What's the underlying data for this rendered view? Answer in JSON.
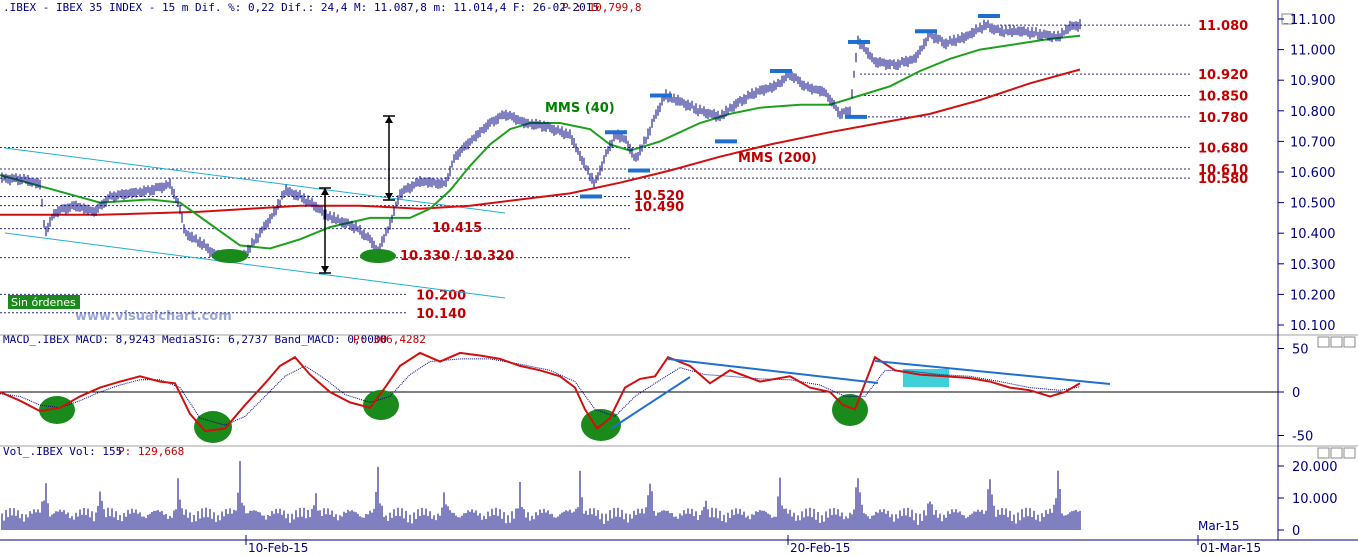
{
  "header": {
    "main_info": ".IBEX - IBEX 35 INDEX -  15 m Dif. %: 0,22 Dif.: 24,4 M: 11.087,8 m: 11.014,4 F: 26-02-2015",
    "main_last": "P : 10,799,8",
    "macd_info": "MACD_.IBEX MACD: 8,9243 MediaSIG: 6,2737 Band_MACD: 0,0000",
    "macd_last": "P: 306,4282",
    "vol_info": "Vol_.IBEX Vol: 155",
    "vol_last": "P: 129,668"
  },
  "watermark": "www.visualchart.com",
  "sin_ordenes": "Sin órdenes",
  "colors": {
    "price": "#000080",
    "mm40": "#1ea01e",
    "mm200": "#d01010",
    "macd": "#d01010",
    "signal": "#000080",
    "trend": "#1f6fd0",
    "level_text": "#c00000",
    "channel": "#20b0d0",
    "marker": "#1f6fd0",
    "ellipse": "#1a8a1a"
  },
  "annotations": {
    "mms40": "MMS (40)",
    "mms200": "MMS (200)",
    "lbl_10415": "10.415",
    "lbl_10330": "10.330 / 10.320",
    "lbl_10520": "10.520",
    "lbl_10490": "10.490"
  },
  "right_levels": [
    {
      "label": "11.080",
      "value": 11080
    },
    {
      "label": "10.920",
      "value": 10920
    },
    {
      "label": "10.850",
      "value": 10850
    },
    {
      "label": "10.780",
      "value": 10780
    },
    {
      "label": "10.680",
      "value": 10680
    },
    {
      "label": "10.610",
      "value": 10610
    },
    {
      "label": "10.580",
      "value": 10580
    }
  ],
  "left_levels": [
    {
      "label": "10.200",
      "value": 10200
    },
    {
      "label": "10.140",
      "value": 10140
    }
  ],
  "other_levels": [
    10520,
    10490,
    10415,
    10320
  ],
  "date_labels": [
    "10-Feb-15",
    "20-Feb-15",
    "01-Mar-15"
  ],
  "mar_label": "Mar-15",
  "chart_data": [
    {
      "type": "line",
      "title": ".IBEX - IBEX 35 INDEX - 15 m",
      "series_names": [
        "IBEX 35 (15 m bars)",
        "MMS (40)",
        "MMS (200)"
      ],
      "y_ticks": [
        "11.100",
        "11.000",
        "10.900",
        "10.800",
        "10.700",
        "10.600",
        "10.500",
        "10.400",
        "10.300",
        "10.200",
        "10.100"
      ],
      "ylim": [
        10085,
        11108
      ],
      "price_path": [
        [
          0,
          10580
        ],
        [
          25,
          10575
        ],
        [
          40,
          10560
        ],
        [
          45,
          10400
        ],
        [
          55,
          10470
        ],
        [
          75,
          10490
        ],
        [
          95,
          10470
        ],
        [
          110,
          10520
        ],
        [
          130,
          10530
        ],
        [
          150,
          10540
        ],
        [
          170,
          10560
        ],
        [
          180,
          10480
        ],
        [
          185,
          10400
        ],
        [
          200,
          10370
        ],
        [
          215,
          10330
        ],
        [
          225,
          10320
        ],
        [
          245,
          10330
        ],
        [
          260,
          10400
        ],
        [
          275,
          10470
        ],
        [
          285,
          10540
        ],
        [
          300,
          10520
        ],
        [
          315,
          10490
        ],
        [
          325,
          10460
        ],
        [
          340,
          10440
        ],
        [
          355,
          10420
        ],
        [
          370,
          10380
        ],
        [
          378,
          10340
        ],
        [
          390,
          10430
        ],
        [
          400,
          10530
        ],
        [
          420,
          10570
        ],
        [
          445,
          10560
        ],
        [
          455,
          10650
        ],
        [
          470,
          10700
        ],
        [
          490,
          10760
        ],
        [
          505,
          10790
        ],
        [
          525,
          10760
        ],
        [
          545,
          10750
        ],
        [
          570,
          10720
        ],
        [
          585,
          10620
        ],
        [
          595,
          10560
        ],
        [
          605,
          10650
        ],
        [
          615,
          10720
        ],
        [
          625,
          10710
        ],
        [
          635,
          10640
        ],
        [
          645,
          10700
        ],
        [
          655,
          10780
        ],
        [
          665,
          10850
        ],
        [
          680,
          10830
        ],
        [
          700,
          10800
        ],
        [
          720,
          10780
        ],
        [
          735,
          10820
        ],
        [
          755,
          10860
        ],
        [
          775,
          10880
        ],
        [
          790,
          10920
        ],
        [
          805,
          10880
        ],
        [
          825,
          10860
        ],
        [
          840,
          10790
        ],
        [
          850,
          10800
        ],
        [
          858,
          11030
        ],
        [
          875,
          10960
        ],
        [
          895,
          10950
        ],
        [
          915,
          10970
        ],
        [
          930,
          11050
        ],
        [
          945,
          11020
        ],
        [
          965,
          11040
        ],
        [
          985,
          11080
        ],
        [
          1000,
          11060
        ],
        [
          1020,
          11060
        ],
        [
          1040,
          11050
        ],
        [
          1058,
          11040
        ],
        [
          1070,
          11075
        ],
        [
          1080,
          11080
        ]
      ],
      "mm40": [
        [
          0,
          10590
        ],
        [
          50,
          10545
        ],
        [
          100,
          10500
        ],
        [
          150,
          10510
        ],
        [
          180,
          10500
        ],
        [
          210,
          10430
        ],
        [
          240,
          10360
        ],
        [
          270,
          10350
        ],
        [
          300,
          10380
        ],
        [
          330,
          10420
        ],
        [
          370,
          10450
        ],
        [
          410,
          10450
        ],
        [
          430,
          10480
        ],
        [
          450,
          10540
        ],
        [
          470,
          10620
        ],
        [
          490,
          10690
        ],
        [
          510,
          10740
        ],
        [
          530,
          10760
        ],
        [
          560,
          10760
        ],
        [
          590,
          10740
        ],
        [
          610,
          10690
        ],
        [
          630,
          10670
        ],
        [
          660,
          10700
        ],
        [
          700,
          10760
        ],
        [
          730,
          10790
        ],
        [
          760,
          10810
        ],
        [
          800,
          10820
        ],
        [
          830,
          10820
        ],
        [
          860,
          10850
        ],
        [
          890,
          10880
        ],
        [
          920,
          10930
        ],
        [
          950,
          10970
        ],
        [
          980,
          11000
        ],
        [
          1020,
          11020
        ],
        [
          1050,
          11035
        ],
        [
          1080,
          11045
        ]
      ],
      "mm200": [
        [
          0,
          10460
        ],
        [
          100,
          10460
        ],
        [
          200,
          10470
        ],
        [
          250,
          10480
        ],
        [
          300,
          10490
        ],
        [
          360,
          10490
        ],
        [
          420,
          10480
        ],
        [
          470,
          10490
        ],
        [
          520,
          10510
        ],
        [
          570,
          10530
        ],
        [
          620,
          10565
        ],
        [
          670,
          10605
        ],
        [
          720,
          10650
        ],
        [
          770,
          10690
        ],
        [
          830,
          10730
        ],
        [
          880,
          10760
        ],
        [
          930,
          10790
        ],
        [
          980,
          10835
        ],
        [
          1030,
          10890
        ],
        [
          1080,
          10935
        ]
      ]
    },
    {
      "type": "line",
      "title": "MACD_.IBEX",
      "series_names": [
        "MACD",
        "MediaSIG"
      ],
      "y_ticks": [
        "50",
        "0",
        "-50"
      ],
      "ylim": [
        -60,
        55
      ],
      "macd": [
        [
          0,
          0
        ],
        [
          20,
          -10
        ],
        [
          40,
          -22
        ],
        [
          60,
          -18
        ],
        [
          80,
          -5
        ],
        [
          100,
          5
        ],
        [
          120,
          12
        ],
        [
          140,
          18
        ],
        [
          160,
          12
        ],
        [
          175,
          10
        ],
        [
          190,
          -25
        ],
        [
          205,
          -45
        ],
        [
          225,
          -42
        ],
        [
          245,
          -15
        ],
        [
          265,
          10
        ],
        [
          280,
          30
        ],
        [
          295,
          40
        ],
        [
          310,
          20
        ],
        [
          330,
          0
        ],
        [
          350,
          -12
        ],
        [
          370,
          -18
        ],
        [
          385,
          5
        ],
        [
          400,
          30
        ],
        [
          420,
          45
        ],
        [
          440,
          35
        ],
        [
          460,
          45
        ],
        [
          480,
          42
        ],
        [
          500,
          38
        ],
        [
          520,
          30
        ],
        [
          540,
          25
        ],
        [
          560,
          18
        ],
        [
          575,
          5
        ],
        [
          585,
          -20
        ],
        [
          597,
          -42
        ],
        [
          610,
          -30
        ],
        [
          625,
          5
        ],
        [
          640,
          15
        ],
        [
          655,
          18
        ],
        [
          668,
          40
        ],
        [
          690,
          30
        ],
        [
          710,
          10
        ],
        [
          730,
          25
        ],
        [
          760,
          12
        ],
        [
          790,
          18
        ],
        [
          810,
          5
        ],
        [
          830,
          0
        ],
        [
          843,
          -15
        ],
        [
          855,
          -20
        ],
        [
          865,
          10
        ],
        [
          875,
          40
        ],
        [
          895,
          25
        ],
        [
          920,
          20
        ],
        [
          945,
          18
        ],
        [
          970,
          16
        ],
        [
          990,
          12
        ],
        [
          1010,
          5
        ],
        [
          1030,
          2
        ],
        [
          1050,
          -5
        ],
        [
          1065,
          0
        ],
        [
          1080,
          10
        ]
      ],
      "signal": [
        [
          0,
          -2
        ],
        [
          20,
          -5
        ],
        [
          40,
          -15
        ],
        [
          60,
          -18
        ],
        [
          80,
          -10
        ],
        [
          100,
          0
        ],
        [
          120,
          8
        ],
        [
          140,
          14
        ],
        [
          160,
          14
        ],
        [
          180,
          5
        ],
        [
          200,
          -30
        ],
        [
          225,
          -38
        ],
        [
          245,
          -28
        ],
        [
          265,
          -5
        ],
        [
          285,
          18
        ],
        [
          305,
          30
        ],
        [
          325,
          15
        ],
        [
          345,
          -3
        ],
        [
          370,
          -12
        ],
        [
          390,
          -5
        ],
        [
          410,
          20
        ],
        [
          430,
          35
        ],
        [
          460,
          38
        ],
        [
          490,
          38
        ],
        [
          520,
          32
        ],
        [
          550,
          25
        ],
        [
          575,
          12
        ],
        [
          595,
          -20
        ],
        [
          615,
          -28
        ],
        [
          635,
          -5
        ],
        [
          655,
          10
        ],
        [
          680,
          28
        ],
        [
          705,
          20
        ],
        [
          730,
          18
        ],
        [
          760,
          15
        ],
        [
          790,
          14
        ],
        [
          820,
          8
        ],
        [
          845,
          -5
        ],
        [
          865,
          -5
        ],
        [
          885,
          25
        ],
        [
          910,
          24
        ],
        [
          940,
          20
        ],
        [
          970,
          18
        ],
        [
          1000,
          12
        ],
        [
          1030,
          5
        ],
        [
          1060,
          2
        ],
        [
          1080,
          6
        ]
      ]
    },
    {
      "type": "bar",
      "title": "Vol_.IBEX",
      "series_names": [
        "Vol"
      ],
      "y_ticks": [
        "20.000",
        "10.000",
        "0"
      ],
      "ylim": [
        0,
        22500
      ],
      "volume_peaks": [
        [
          45,
          19500
        ],
        [
          100,
          15000
        ],
        [
          178,
          17000
        ],
        [
          240,
          22000
        ],
        [
          315,
          15000
        ],
        [
          378,
          21000
        ],
        [
          445,
          16000
        ],
        [
          520,
          15000
        ],
        [
          580,
          19000
        ],
        [
          650,
          20000
        ],
        [
          705,
          13000
        ],
        [
          780,
          18000
        ],
        [
          858,
          22000
        ],
        [
          930,
          14000
        ],
        [
          990,
          21000
        ],
        [
          1058,
          21500
        ]
      ]
    }
  ]
}
